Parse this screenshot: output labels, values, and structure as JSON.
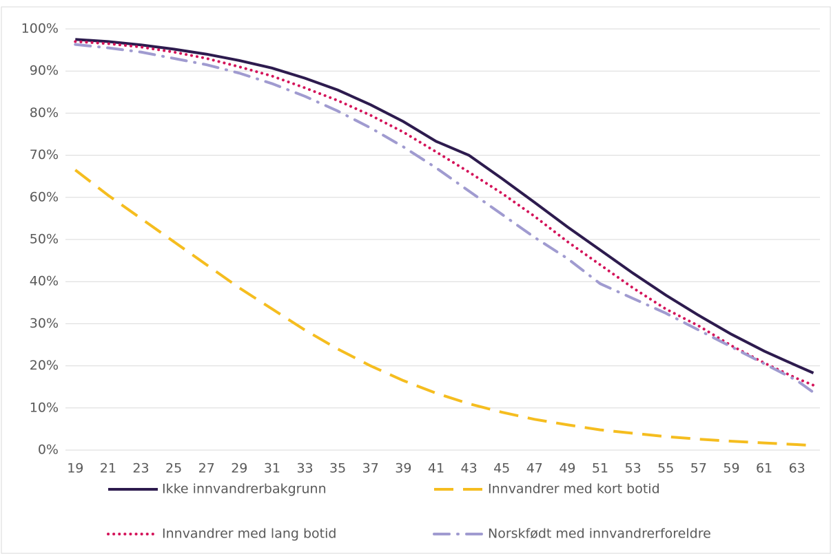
{
  "chart_data": {
    "type": "line",
    "x": [
      19,
      21,
      23,
      25,
      27,
      29,
      31,
      33,
      35,
      37,
      39,
      41,
      43,
      45,
      47,
      49,
      51,
      53,
      55,
      57,
      59,
      61,
      63,
      64
    ],
    "series": [
      {
        "name": "Ikke innvandrerbakgrunn",
        "color": "#2d1b4e",
        "style": "solid",
        "values": [
          97.5,
          97,
          96.2,
          95.2,
          94,
          92.5,
          90.7,
          88.3,
          85.5,
          82,
          78,
          73.3,
          70,
          64.5,
          58.8,
          53,
          47.5,
          42,
          36.8,
          32,
          27.5,
          23.5,
          20,
          18.3
        ]
      },
      {
        "name": "Innvandrer med kort botid",
        "color": "#f5bd1f",
        "style": "dashed",
        "values": [
          66.5,
          60.5,
          55,
          49.5,
          44,
          38.5,
          33.5,
          28.5,
          24,
          20,
          16.5,
          13.5,
          11,
          9,
          7.3,
          6,
          4.8,
          4,
          3.2,
          2.6,
          2.1,
          1.7,
          1.3,
          1.1
        ]
      },
      {
        "name": "Innvandrer med lang botid",
        "color": "#d4145a",
        "style": "dotted",
        "values": [
          97,
          96.5,
          95.7,
          94.5,
          93,
          91,
          88.8,
          86,
          83,
          79.5,
          75.5,
          70.8,
          66,
          61,
          55.5,
          49.5,
          44,
          38.5,
          33.5,
          29.5,
          24.8,
          20.7,
          17,
          15.4
        ]
      },
      {
        "name": "Norskfødt med innvandrerforeldre",
        "color": "#a09bd0",
        "style": "dashdot",
        "values": [
          96.3,
          95.5,
          94.5,
          93,
          91.5,
          89.5,
          87,
          84,
          80.5,
          76.5,
          72,
          67,
          61.5,
          56,
          50.5,
          45.5,
          39.5,
          36,
          32.5,
          28.5,
          24.5,
          20.5,
          16.5,
          13.7
        ]
      }
    ],
    "xlim": [
      18.4,
      64.4
    ],
    "xticks": [
      19,
      21,
      23,
      25,
      27,
      29,
      31,
      33,
      35,
      37,
      39,
      41,
      43,
      45,
      47,
      49,
      51,
      53,
      55,
      57,
      59,
      61,
      63
    ],
    "ylim": [
      0,
      100
    ],
    "yticks": [
      {
        "value": 0,
        "label": "0%"
      },
      {
        "value": 10,
        "label": "10%"
      },
      {
        "value": 20,
        "label": "20%"
      },
      {
        "value": 30,
        "label": "30%"
      },
      {
        "value": 40,
        "label": "40%"
      },
      {
        "value": 50,
        "label": "50%"
      },
      {
        "value": 60,
        "label": "60%"
      },
      {
        "value": 70,
        "label": "70%"
      },
      {
        "value": 80,
        "label": "80%"
      },
      {
        "value": 90,
        "label": "90%"
      },
      {
        "value": 100,
        "label": "100%"
      }
    ],
    "grid": true,
    "legend": "bottom"
  }
}
